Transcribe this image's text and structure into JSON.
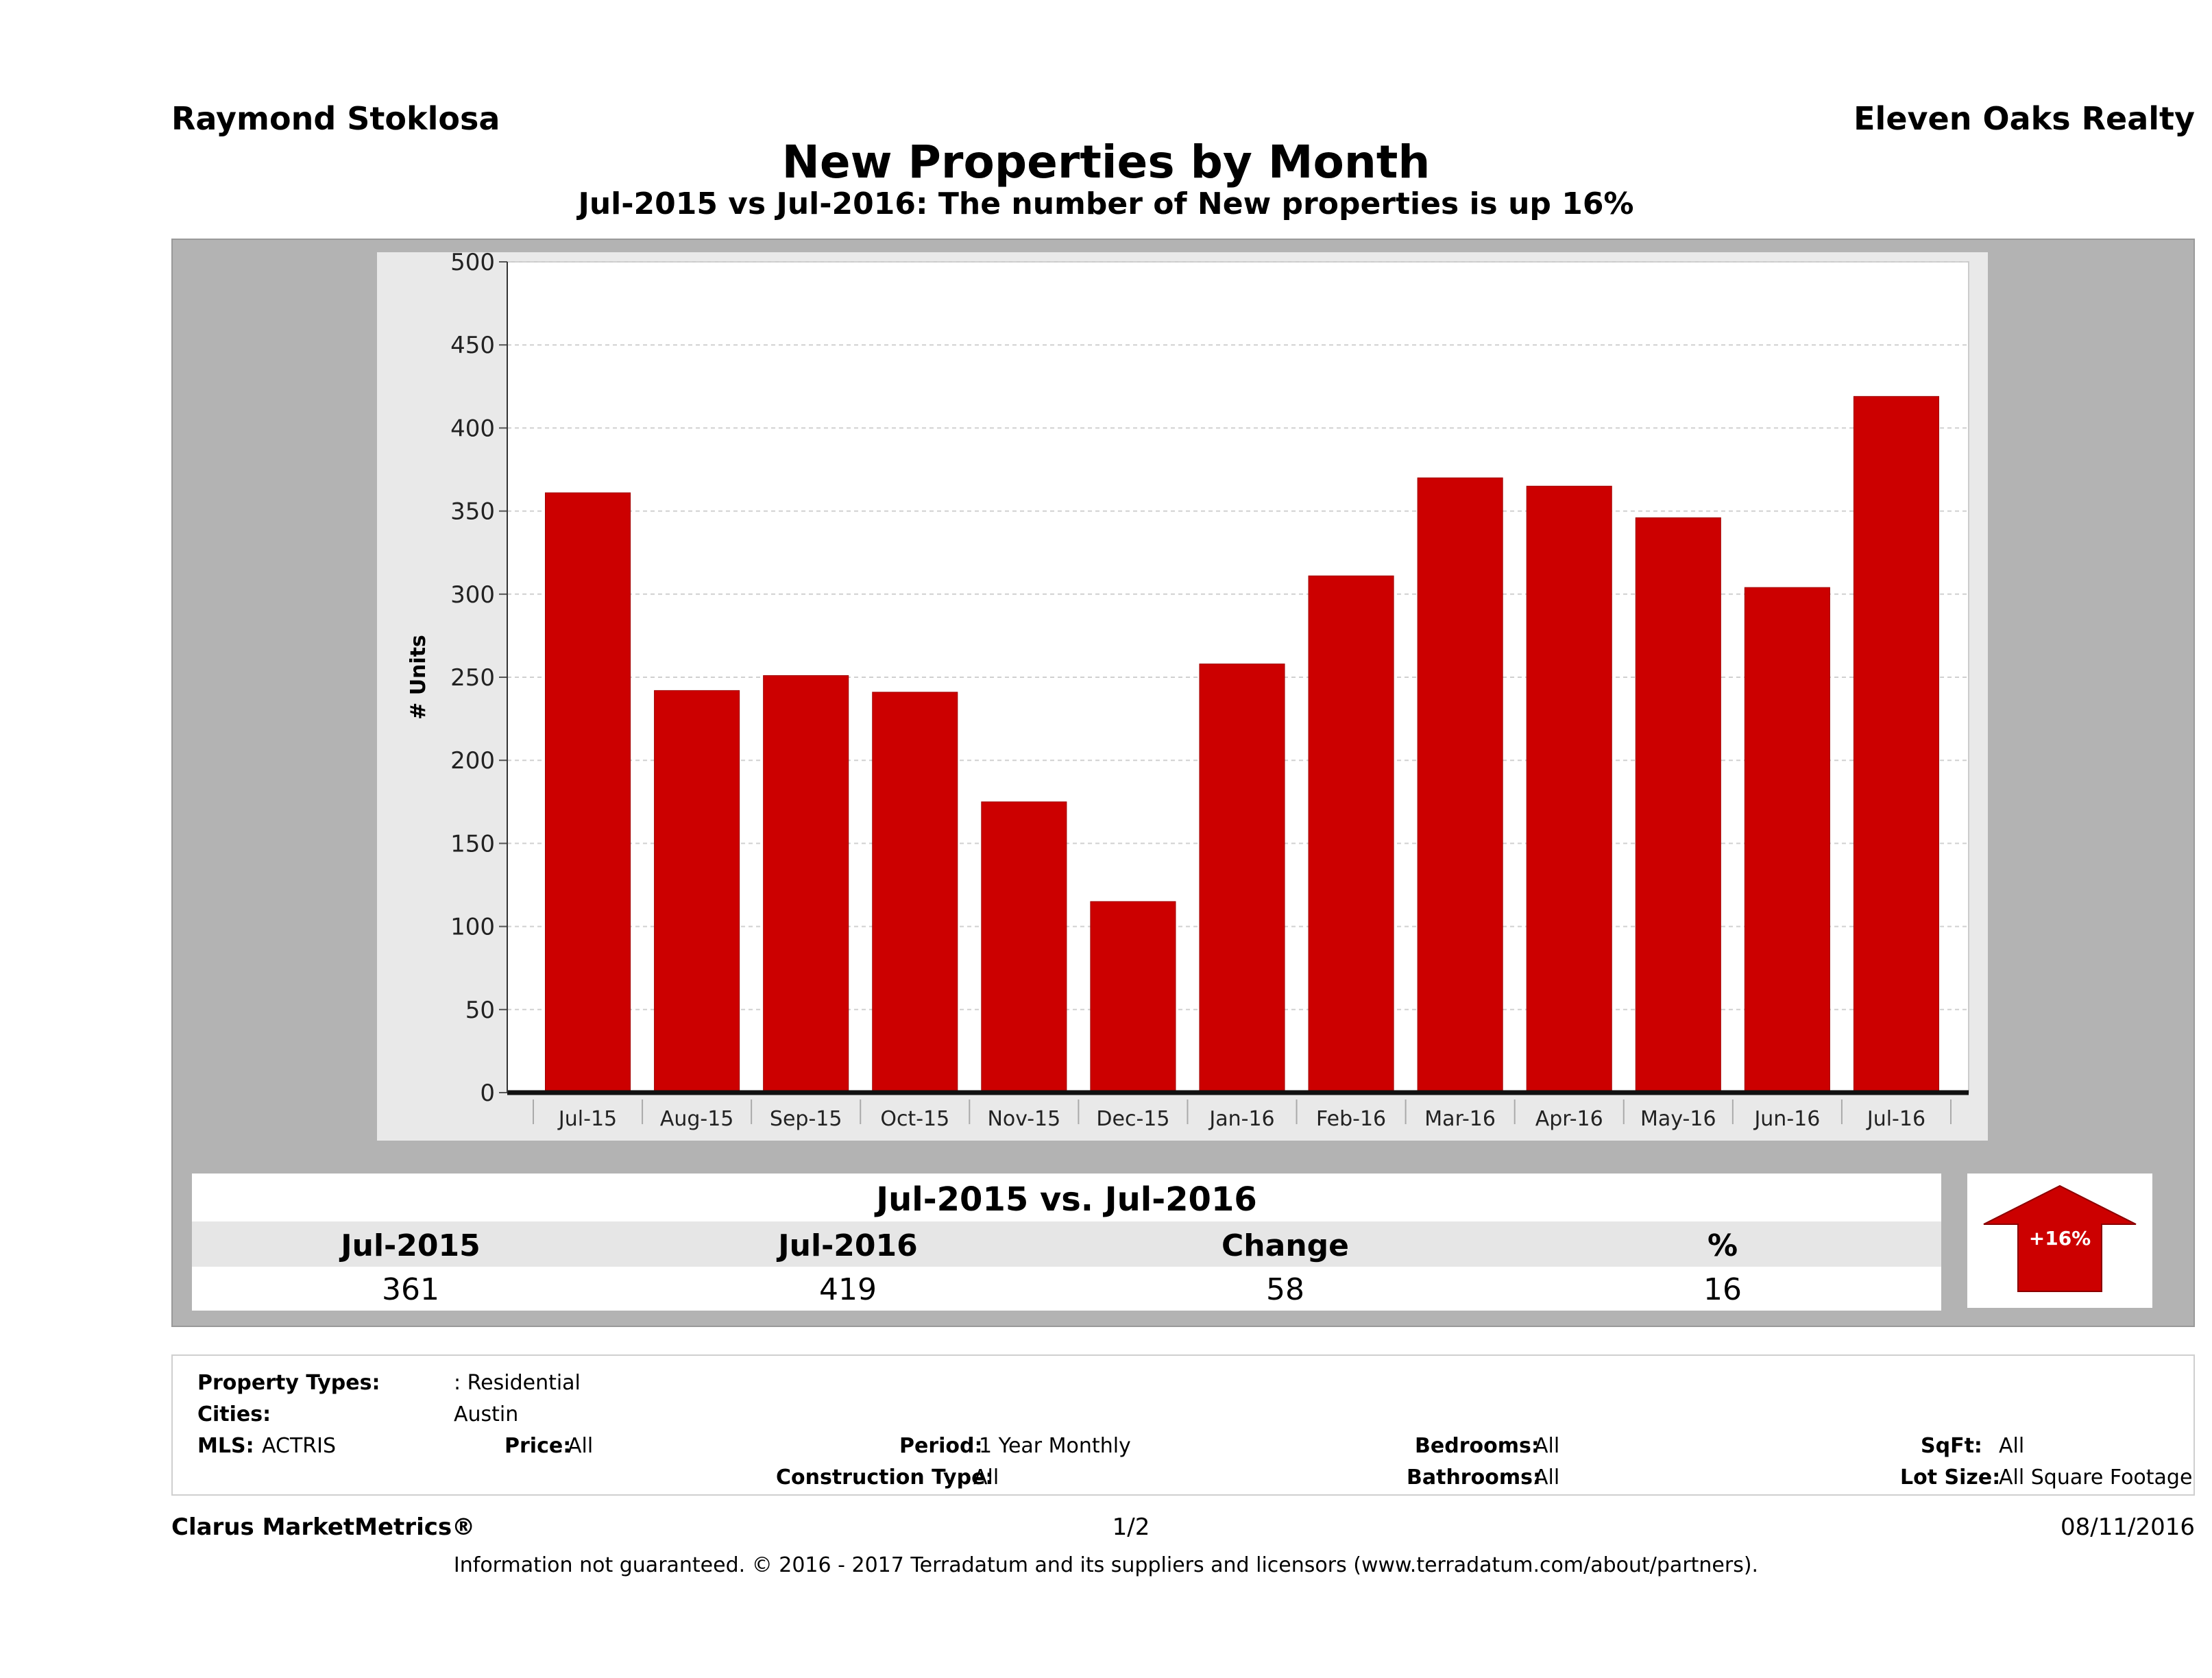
{
  "header": {
    "agent_name": "Raymond Stoklosa",
    "brokerage": "Eleven Oaks Realty",
    "title": "New Properties by Month",
    "subtitle": "Jul-2015 vs Jul-2016: The number of New   properties is up 16%"
  },
  "chart_data": {
    "type": "bar",
    "title": "New Properties by Month",
    "ylabel": "# Units",
    "xlabel": "",
    "categories": [
      "Jul-15",
      "Aug-15",
      "Sep-15",
      "Oct-15",
      "Nov-15",
      "Dec-15",
      "Jan-16",
      "Feb-16",
      "Mar-16",
      "Apr-16",
      "May-16",
      "Jun-16",
      "Jul-16"
    ],
    "values": [
      361,
      242,
      251,
      241,
      175,
      115,
      258,
      311,
      370,
      365,
      346,
      304,
      419
    ],
    "ylim": [
      0,
      500
    ],
    "yticks": [
      0,
      50,
      100,
      150,
      200,
      250,
      300,
      350,
      400,
      450,
      500
    ],
    "grid": true,
    "bar_color": "#cc0000"
  },
  "summary": {
    "title": "Jul-2015 vs. Jul-2016",
    "headers": [
      "Jul-2015",
      "Jul-2016",
      "Change",
      "%"
    ],
    "values": [
      "361",
      "419",
      "58",
      "16"
    ],
    "badge": "+16%",
    "badge_icon": "up-arrow-icon",
    "badge_color": "#cc0000"
  },
  "filters": {
    "property_types_label": "Property Types:",
    "property_types_value": ": Residential",
    "cities_label": "Cities:",
    "cities_value": "Austin",
    "mls_label": "MLS:",
    "mls_value": "ACTRIS",
    "price_label": "Price:",
    "price_value": "All",
    "period_label": "Period:",
    "period_value": "1 Year Monthly",
    "construction_label": "Construction Type:",
    "construction_value": "All",
    "bedrooms_label": "Bedrooms:",
    "bedrooms_value": "All",
    "bathrooms_label": "Bathrooms:",
    "bathrooms_value": "All",
    "sqft_label": "SqFt:",
    "sqft_value": "All",
    "lotsize_label": "Lot Size:",
    "lotsize_value": "All Square Footage"
  },
  "footer": {
    "brand": "Clarus MarketMetrics®",
    "page": "1/2",
    "date": "08/11/2016",
    "disclaimer": "Information not guaranteed. © 2016 - 2017 Terradatum and its suppliers and licensors (www.terradatum.com/about/partners)."
  }
}
